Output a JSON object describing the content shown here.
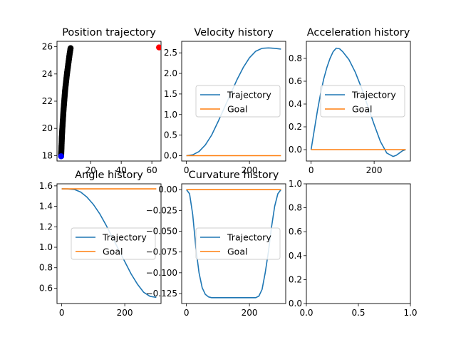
{
  "colors": {
    "trajectory": "#1f77b4",
    "goal": "#ff7f0e",
    "path_marker": "#000000",
    "start_marker": "#0000ff",
    "goal_marker": "#ff0000"
  },
  "chart_data": [
    {
      "id": "position",
      "type": "scatter",
      "title": "Position trajectory",
      "xlim": [
        -2,
        66
      ],
      "ylim": [
        17.6,
        26.4
      ],
      "xticks": [
        20,
        40,
        60
      ],
      "yticks": [
        18,
        20,
        22,
        24,
        26
      ],
      "xtick_labels": [
        "20",
        "40",
        "60"
      ],
      "ytick_labels": [
        "18",
        "20",
        "22",
        "24",
        "26"
      ],
      "start_point": {
        "x": 0.7,
        "y": 17.95
      },
      "goal_point": {
        "x": 64.7,
        "y": 25.95
      },
      "path_x": [
        0.7,
        0.8,
        1.0,
        1.2,
        1.5,
        1.9,
        2.3,
        2.8,
        3.3,
        3.9,
        4.5,
        5.1,
        5.7,
        6.3,
        6.9
      ],
      "path_y": [
        17.95,
        18.3,
        18.8,
        19.4,
        20.0,
        20.7,
        21.4,
        22.1,
        22.8,
        23.4,
        24.0,
        24.5,
        25.0,
        25.5,
        25.9
      ]
    },
    {
      "id": "velocity",
      "type": "line",
      "title": "Velocity history",
      "xlim": [
        -15,
        315
      ],
      "ylim": [
        -0.13,
        2.78
      ],
      "xticks": [
        0,
        200
      ],
      "yticks": [
        0.0,
        0.5,
        1.0,
        1.5,
        2.0,
        2.5
      ],
      "xtick_labels": [
        "0",
        "200"
      ],
      "ytick_labels": [
        "0.0",
        "0.5",
        "1.0",
        "1.5",
        "2.0",
        "2.5"
      ],
      "legend": [
        "Trajectory",
        "Goal"
      ],
      "legend_position": "center",
      "series": [
        {
          "name": "Trajectory",
          "x": [
            0,
            20,
            40,
            60,
            80,
            100,
            120,
            140,
            160,
            180,
            200,
            220,
            240,
            260,
            280,
            300
          ],
          "y": [
            0.0,
            0.02,
            0.1,
            0.26,
            0.5,
            0.82,
            1.16,
            1.5,
            1.84,
            2.14,
            2.38,
            2.54,
            2.61,
            2.62,
            2.61,
            2.59
          ]
        },
        {
          "name": "Goal",
          "x": [
            0,
            300
          ],
          "y": [
            0.0,
            0.0
          ]
        }
      ]
    },
    {
      "id": "acceleration",
      "type": "line",
      "title": "Acceleration history",
      "xlim": [
        -15,
        315
      ],
      "ylim": [
        -0.1,
        0.95
      ],
      "xticks": [
        0,
        200
      ],
      "yticks": [
        0.0,
        0.2,
        0.4,
        0.6,
        0.8
      ],
      "xtick_labels": [
        "0",
        "200"
      ],
      "ytick_labels": [
        "0.0",
        "0.2",
        "0.4",
        "0.6",
        "0.8"
      ],
      "legend": [
        "Trajectory",
        "Goal"
      ],
      "legend_position": "center",
      "series": [
        {
          "name": "Trajectory",
          "x": [
            0,
            10,
            20,
            30,
            40,
            50,
            60,
            70,
            80,
            90,
            100,
            120,
            140,
            160,
            180,
            200,
            220,
            240,
            260,
            270,
            280,
            290,
            300
          ],
          "y": [
            0.0,
            0.17,
            0.34,
            0.49,
            0.62,
            0.72,
            0.8,
            0.86,
            0.89,
            0.885,
            0.86,
            0.79,
            0.68,
            0.54,
            0.38,
            0.22,
            0.07,
            -0.03,
            -0.06,
            -0.05,
            -0.03,
            -0.01,
            0.0
          ]
        },
        {
          "name": "Goal",
          "x": [
            0,
            300
          ],
          "y": [
            0.0,
            0.0
          ]
        }
      ]
    },
    {
      "id": "angle",
      "type": "line",
      "title": "Angle history",
      "xlim": [
        -15,
        315
      ],
      "ylim": [
        0.45,
        1.62
      ],
      "xticks": [
        0,
        200
      ],
      "yticks": [
        0.6,
        0.8,
        1.0,
        1.2,
        1.4,
        1.6
      ],
      "xtick_labels": [
        "0",
        "200"
      ],
      "ytick_labels": [
        "0.6",
        "0.8",
        "1.0",
        "1.2",
        "1.4",
        "1.6"
      ],
      "legend": [
        "Trajectory",
        "Goal"
      ],
      "legend_position": "center-left",
      "series": [
        {
          "name": "Trajectory",
          "x": [
            0,
            20,
            40,
            60,
            80,
            100,
            120,
            140,
            160,
            180,
            200,
            220,
            240,
            260,
            280,
            300
          ],
          "y": [
            1.571,
            1.57,
            1.565,
            1.54,
            1.49,
            1.42,
            1.33,
            1.22,
            1.1,
            0.98,
            0.86,
            0.74,
            0.64,
            0.56,
            0.52,
            0.51
          ]
        },
        {
          "name": "Goal",
          "x": [
            0,
            300
          ],
          "y": [
            1.571,
            1.571
          ]
        }
      ]
    },
    {
      "id": "curvature",
      "type": "line",
      "title": "Curvature history",
      "xlim": [
        -15,
        315
      ],
      "ylim": [
        -0.137,
        0.007
      ],
      "xticks": [
        0,
        200
      ],
      "yticks": [
        0.0,
        -0.025,
        -0.05,
        -0.075,
        -0.1,
        -0.125
      ],
      "xtick_labels": [
        "0",
        "200"
      ],
      "ytick_labels": [
        "0.00",
        "−0.025",
        "−0.050",
        "−0.075",
        "−0.100",
        "−0.125"
      ],
      "legend": [
        "Trajectory",
        "Goal"
      ],
      "legend_position": "center",
      "series": [
        {
          "name": "Trajectory",
          "x": [
            0,
            10,
            20,
            30,
            40,
            50,
            60,
            70,
            80,
            100,
            150,
            200,
            220,
            230,
            240,
            250,
            260,
            270,
            280,
            290,
            300
          ],
          "y": [
            0.0,
            -0.005,
            -0.03,
            -0.07,
            -0.1,
            -0.118,
            -0.126,
            -0.129,
            -0.13,
            -0.13,
            -0.13,
            -0.13,
            -0.13,
            -0.128,
            -0.12,
            -0.1,
            -0.075,
            -0.045,
            -0.02,
            -0.005,
            0.0
          ]
        },
        {
          "name": "Goal",
          "x": [
            0,
            300
          ],
          "y": [
            0.0,
            0.0
          ]
        }
      ]
    },
    {
      "id": "empty",
      "type": "line",
      "title": "",
      "xlim": [
        0,
        1
      ],
      "ylim": [
        0,
        1
      ],
      "xticks": [
        0.0,
        0.5,
        1.0
      ],
      "yticks": [
        0.0,
        0.2,
        0.4,
        0.6,
        0.8,
        1.0
      ],
      "xtick_labels": [
        "0.0",
        "0.5",
        "1.0"
      ],
      "ytick_labels": [
        "0.0",
        "0.2",
        "0.4",
        "0.6",
        "0.8",
        "1.0"
      ],
      "series": []
    }
  ]
}
